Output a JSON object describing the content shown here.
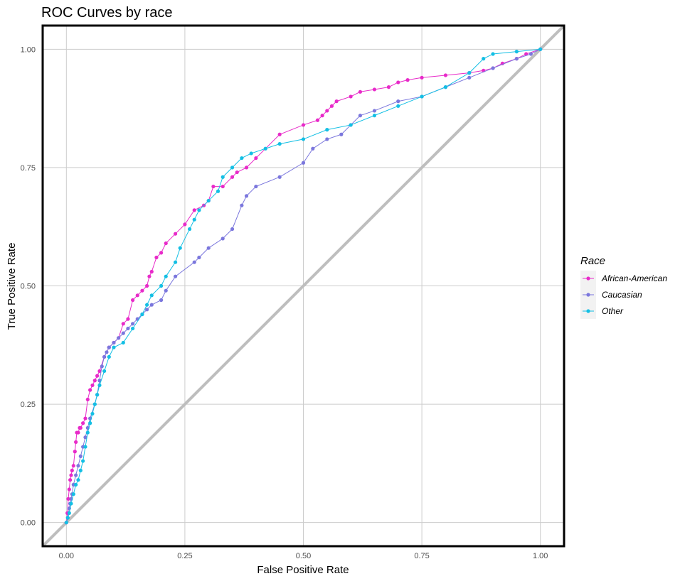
{
  "chart_data": {
    "type": "line",
    "title": "ROC Curves by race",
    "xlabel": "False Positive Rate",
    "ylabel": "True Positive Rate",
    "xlim": [
      -0.05,
      1.05
    ],
    "ylim": [
      -0.05,
      1.05
    ],
    "x_ticks": [
      "0.00",
      "0.25",
      "0.50",
      "0.75",
      "1.00"
    ],
    "y_ticks": [
      "0.00",
      "0.25",
      "0.50",
      "0.75",
      "1.00"
    ],
    "grid": true,
    "legend": {
      "title": "Race",
      "position": "right"
    },
    "reference_line": {
      "x": [
        0,
        1
      ],
      "y": [
        0,
        1
      ],
      "color": "#bebebe"
    },
    "series": [
      {
        "name": "African-American",
        "color": "#e82ac9",
        "x": [
          0,
          0.002,
          0.004,
          0.006,
          0.008,
          0.01,
          0.012,
          0.015,
          0.018,
          0.02,
          0.022,
          0.025,
          0.028,
          0.03,
          0.035,
          0.04,
          0.045,
          0.05,
          0.055,
          0.06,
          0.065,
          0.07,
          0.08,
          0.09,
          0.1,
          0.11,
          0.12,
          0.13,
          0.14,
          0.15,
          0.16,
          0.17,
          0.175,
          0.18,
          0.19,
          0.2,
          0.21,
          0.23,
          0.25,
          0.27,
          0.29,
          0.3,
          0.31,
          0.33,
          0.35,
          0.36,
          0.38,
          0.4,
          0.45,
          0.5,
          0.53,
          0.54,
          0.55,
          0.56,
          0.57,
          0.6,
          0.62,
          0.65,
          0.68,
          0.7,
          0.72,
          0.75,
          0.8,
          0.85,
          0.88,
          0.9,
          0.92,
          0.95,
          0.97,
          1.0
        ],
        "y": [
          0,
          0.02,
          0.05,
          0.07,
          0.09,
          0.1,
          0.11,
          0.12,
          0.15,
          0.17,
          0.19,
          0.19,
          0.2,
          0.2,
          0.21,
          0.22,
          0.26,
          0.28,
          0.29,
          0.3,
          0.31,
          0.32,
          0.35,
          0.37,
          0.38,
          0.39,
          0.42,
          0.43,
          0.47,
          0.48,
          0.49,
          0.5,
          0.52,
          0.53,
          0.56,
          0.57,
          0.59,
          0.61,
          0.63,
          0.66,
          0.67,
          0.68,
          0.71,
          0.71,
          0.73,
          0.74,
          0.75,
          0.77,
          0.82,
          0.84,
          0.85,
          0.86,
          0.87,
          0.88,
          0.89,
          0.9,
          0.91,
          0.915,
          0.92,
          0.93,
          0.935,
          0.94,
          0.945,
          0.95,
          0.955,
          0.96,
          0.97,
          0.98,
          0.99,
          1.0
        ]
      },
      {
        "name": "Caucasian",
        "color": "#7b77dd",
        "x": [
          0,
          0.003,
          0.006,
          0.008,
          0.01,
          0.012,
          0.015,
          0.02,
          0.025,
          0.03,
          0.035,
          0.04,
          0.045,
          0.05,
          0.06,
          0.065,
          0.07,
          0.075,
          0.08,
          0.085,
          0.09,
          0.1,
          0.11,
          0.12,
          0.13,
          0.14,
          0.15,
          0.16,
          0.17,
          0.18,
          0.2,
          0.21,
          0.23,
          0.27,
          0.28,
          0.3,
          0.33,
          0.35,
          0.37,
          0.38,
          0.4,
          0.45,
          0.5,
          0.52,
          0.55,
          0.58,
          0.6,
          0.62,
          0.65,
          0.7,
          0.75,
          0.8,
          0.85,
          0.9,
          0.95,
          0.98,
          1.0
        ],
        "y": [
          0,
          0.01,
          0.03,
          0.04,
          0.05,
          0.06,
          0.08,
          0.1,
          0.12,
          0.14,
          0.16,
          0.18,
          0.2,
          0.22,
          0.25,
          0.27,
          0.3,
          0.33,
          0.35,
          0.36,
          0.37,
          0.38,
          0.39,
          0.4,
          0.41,
          0.42,
          0.43,
          0.44,
          0.45,
          0.46,
          0.47,
          0.49,
          0.52,
          0.55,
          0.56,
          0.58,
          0.6,
          0.62,
          0.67,
          0.69,
          0.71,
          0.73,
          0.76,
          0.79,
          0.81,
          0.82,
          0.84,
          0.86,
          0.87,
          0.89,
          0.9,
          0.92,
          0.94,
          0.96,
          0.98,
          0.99,
          1.0
        ]
      },
      {
        "name": "Other",
        "color": "#13bfe4",
        "x": [
          0,
          0.003,
          0.006,
          0.01,
          0.015,
          0.02,
          0.025,
          0.03,
          0.035,
          0.04,
          0.045,
          0.05,
          0.055,
          0.06,
          0.065,
          0.07,
          0.08,
          0.09,
          0.1,
          0.12,
          0.14,
          0.16,
          0.17,
          0.18,
          0.2,
          0.21,
          0.23,
          0.24,
          0.26,
          0.27,
          0.28,
          0.3,
          0.32,
          0.33,
          0.35,
          0.37,
          0.39,
          0.42,
          0.45,
          0.5,
          0.55,
          0.6,
          0.65,
          0.7,
          0.75,
          0.8,
          0.85,
          0.88,
          0.9,
          0.95,
          1.0
        ],
        "y": [
          0,
          0.01,
          0.02,
          0.04,
          0.06,
          0.08,
          0.09,
          0.11,
          0.13,
          0.16,
          0.19,
          0.21,
          0.23,
          0.25,
          0.27,
          0.29,
          0.32,
          0.35,
          0.37,
          0.38,
          0.41,
          0.44,
          0.46,
          0.48,
          0.5,
          0.52,
          0.55,
          0.58,
          0.62,
          0.64,
          0.66,
          0.68,
          0.7,
          0.73,
          0.75,
          0.77,
          0.78,
          0.79,
          0.8,
          0.81,
          0.83,
          0.84,
          0.86,
          0.88,
          0.9,
          0.92,
          0.95,
          0.98,
          0.99,
          0.995,
          1.0
        ]
      }
    ]
  }
}
